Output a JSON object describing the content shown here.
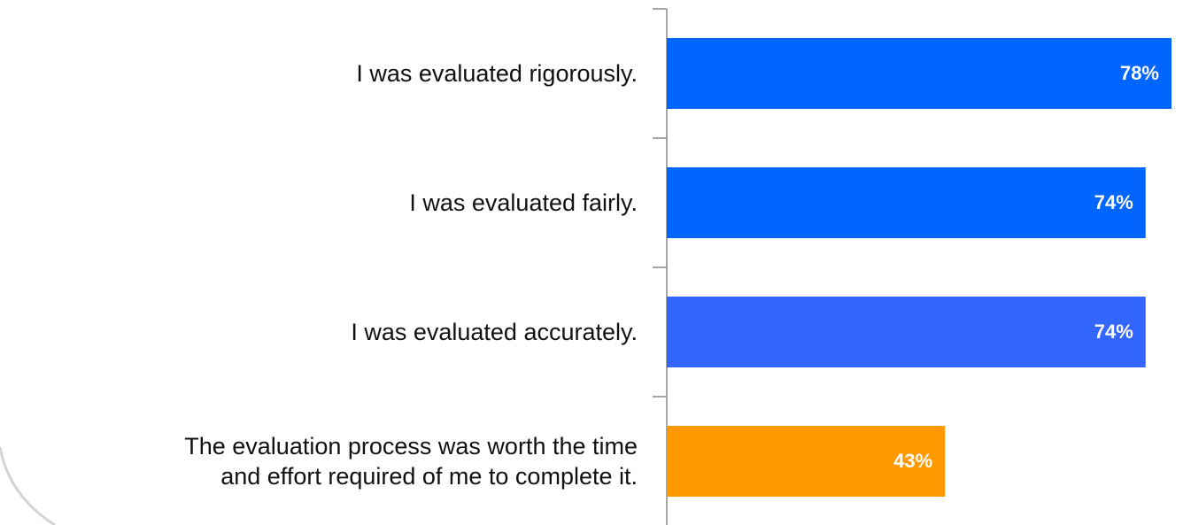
{
  "chart_data": {
    "type": "barh",
    "categories": [
      "I was evaluated rigorously.",
      "I was evaluated fairly.",
      "I was evaluated accurately.",
      "The evaluation process was worth the time\nand effort required of me to complete it."
    ],
    "values": [
      78,
      74,
      74,
      43
    ],
    "value_labels": [
      "78%",
      "74%",
      "74%",
      "43%"
    ],
    "colors": [
      "#0066ff",
      "#0066ff",
      "#3366ff",
      "#ff9900"
    ]
  }
}
